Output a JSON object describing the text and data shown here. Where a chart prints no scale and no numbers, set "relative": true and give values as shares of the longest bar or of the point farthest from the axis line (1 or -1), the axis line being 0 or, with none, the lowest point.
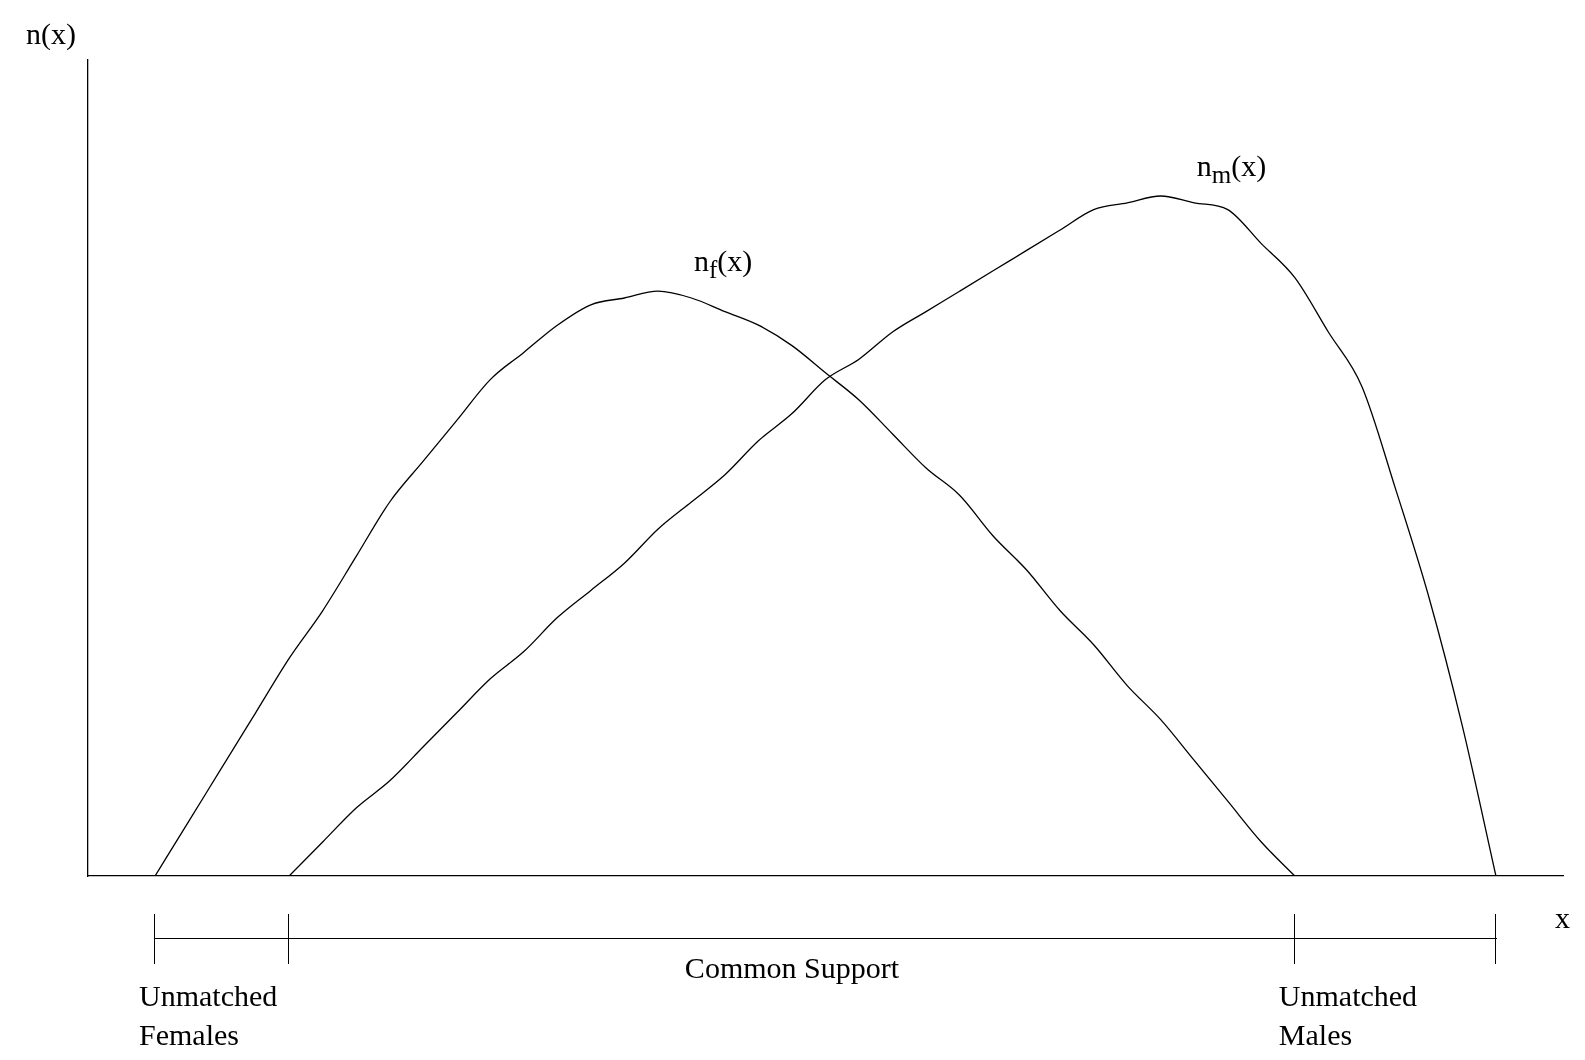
{
  "chart_data": {
    "type": "line",
    "relative": true,
    "xlabel": "x",
    "ylabel": "n(x)",
    "legend": false,
    "grid": false,
    "marker": "none",
    "line_style": "solid",
    "categories": [
      null,
      null,
      null,
      null,
      null,
      null,
      null,
      null,
      null,
      null,
      null,
      null,
      null,
      null,
      null,
      null,
      null,
      null,
      null,
      null,
      null,
      null,
      null,
      null,
      null,
      null,
      null,
      null,
      null,
      null,
      null,
      null,
      null,
      null,
      null,
      null,
      null,
      null,
      null,
      null,
      null,
      null,
      null,
      null,
      null
    ],
    "series": [
      {
        "name": "n$_{f}$(x)",
        "color": "#000000",
        "values": [
          null,
          null,
          0,
          0.08,
          0.16,
          0.24,
          0.32,
          0.39,
          0.47,
          0.55,
          0.61,
          0.67,
          0.73,
          0.77,
          0.81,
          0.84,
          0.85,
          0.86,
          0.85,
          0.83,
          0.81,
          0.78,
          0.74,
          0.7,
          0.65,
          0.6,
          0.56,
          0.5,
          0.45,
          0.39,
          0.34,
          0.28,
          0.23,
          0.17,
          0.11,
          0.05,
          0,
          null,
          null,
          null,
          null,
          null,
          null,
          null,
          null
        ]
      },
      {
        "name": "n$_{m}$(x)",
        "color": "#000000",
        "values": [
          null,
          null,
          null,
          null,
          null,
          null,
          0,
          0.05,
          0.1,
          0.14,
          0.19,
          0.24,
          0.29,
          0.33,
          0.38,
          0.42,
          0.46,
          0.51,
          0.55,
          0.59,
          0.64,
          0.68,
          0.73,
          0.76,
          0.8,
          0.83,
          0.86,
          0.89,
          0.92,
          0.95,
          0.98,
          0.99,
          1,
          0.99,
          0.98,
          0.93,
          0.88,
          0.8,
          0.72,
          0.57,
          0.41,
          0.22,
          0,
          null,
          null
        ]
      }
    ],
    "annotations": [
      "Unmatched Females",
      "Common Support",
      "Unmatched Males"
    ]
  }
}
